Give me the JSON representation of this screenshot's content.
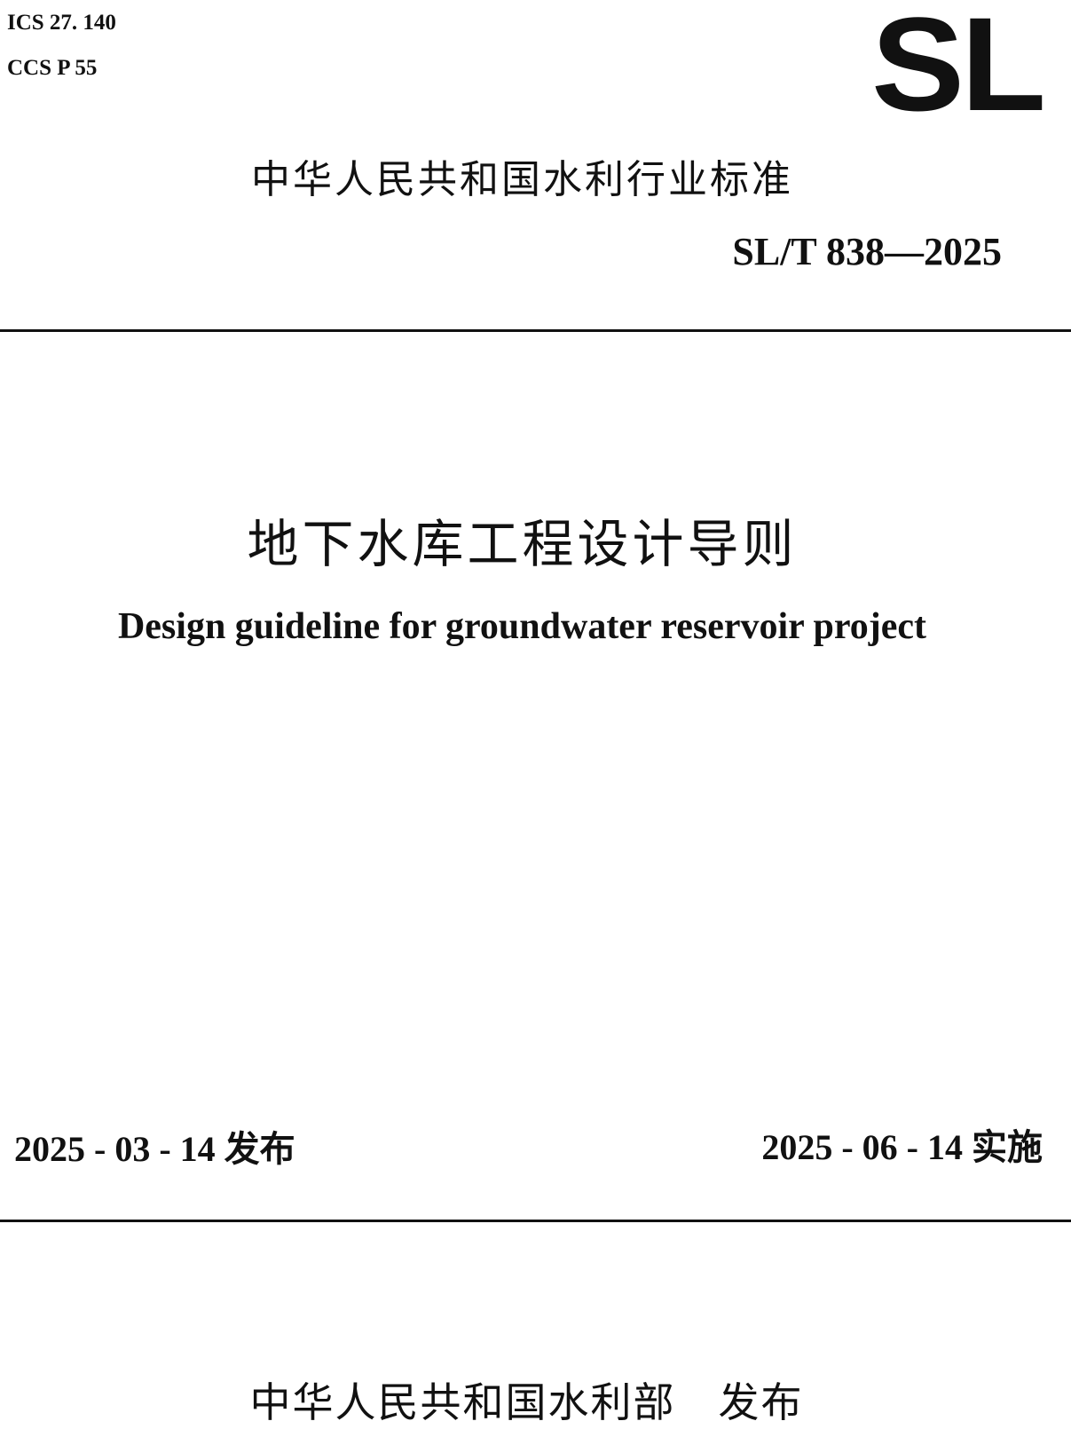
{
  "header": {
    "ics": "ICS 27. 140",
    "ccs": "CCS P 55",
    "logo": "SL",
    "category": "中华人民共和国水利行业标准",
    "standard_number": "SL/T 838—2025"
  },
  "title": {
    "chinese": "地下水库工程设计导则",
    "english": "Design guideline for groundwater reservoir project"
  },
  "dates": {
    "issue": "2025 - 03 - 14 发布",
    "implement": "2025 - 06 - 14 实施"
  },
  "footer": {
    "publisher": "中华人民共和国水利部　发布"
  }
}
